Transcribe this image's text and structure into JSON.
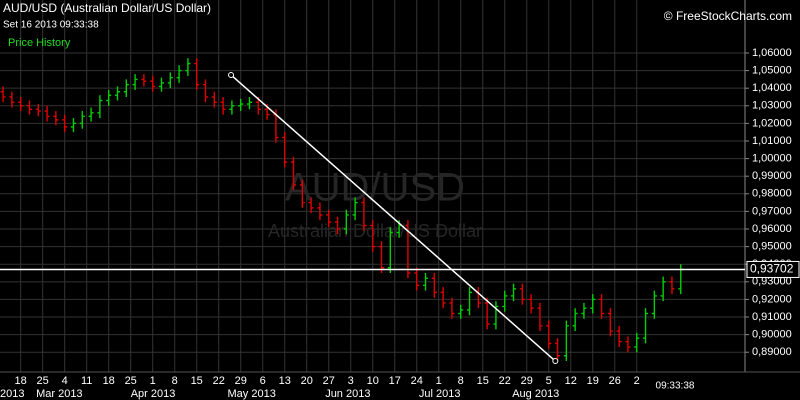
{
  "chart_data": {
    "type": "ohlc",
    "title": "AUD/USD (Australian Dollar/US Dollar)",
    "subtitle": "Set 16 2013 09:33:38",
    "panel_label": "Price History",
    "credit": "© FreeStockCharts.com",
    "watermark": "AUD/USD",
    "watermark_subtitle": "Australian Dollar/US Dollar",
    "time_label": "09:33:38",
    "up_color": "#00d000",
    "down_color": "#e00000",
    "grid": true,
    "x": [
      0,
      2,
      4,
      6,
      8,
      10,
      12,
      14,
      16,
      18,
      20,
      22,
      24,
      26,
      28,
      30,
      32,
      34,
      36,
      38,
      40,
      42,
      44,
      46,
      48,
      50,
      52,
      54,
      56,
      58,
      60,
      62,
      64,
      66,
      68,
      70,
      72,
      74,
      76,
      78,
      80,
      82,
      84,
      86,
      88,
      90,
      92,
      94,
      96,
      98,
      100,
      102,
      104,
      106,
      108,
      110,
      112,
      114,
      116,
      118,
      120,
      122,
      124,
      126,
      128,
      130,
      132,
      134,
      136,
      138,
      140,
      142,
      144,
      146,
      148,
      150,
      152,
      154
    ],
    "open": [
      1.038,
      1.035,
      1.032,
      1.03,
      1.028,
      1.027,
      1.024,
      1.022,
      1.018,
      1.02,
      1.024,
      1.026,
      1.033,
      1.036,
      1.038,
      1.042,
      1.045,
      1.044,
      1.041,
      1.043,
      1.046,
      1.05,
      1.054,
      1.042,
      1.035,
      1.032,
      1.028,
      1.03,
      1.031,
      1.032,
      1.028,
      1.025,
      1.012,
      0.998,
      0.985,
      0.975,
      0.972,
      0.968,
      0.964,
      0.96,
      0.968,
      0.975,
      0.962,
      0.95,
      0.938,
      0.958,
      0.962,
      0.935,
      0.928,
      0.932,
      0.924,
      0.918,
      0.912,
      0.914,
      0.924,
      0.918,
      0.906,
      0.916,
      0.922,
      0.926,
      0.92,
      0.915,
      0.905,
      0.895,
      0.888,
      0.905,
      0.912,
      0.915,
      0.92,
      0.912,
      0.902,
      0.896,
      0.893,
      0.898,
      0.912,
      0.922,
      0.93,
      0.926
    ],
    "high": [
      1.041,
      1.038,
      1.035,
      1.033,
      1.031,
      1.03,
      1.027,
      1.025,
      1.023,
      1.027,
      1.029,
      1.036,
      1.039,
      1.041,
      1.045,
      1.048,
      1.048,
      1.047,
      1.046,
      1.049,
      1.053,
      1.057,
      1.057,
      1.045,
      1.038,
      1.035,
      1.033,
      1.034,
      1.035,
      1.035,
      1.031,
      1.028,
      1.015,
      1.001,
      0.988,
      0.978,
      0.975,
      0.971,
      0.967,
      0.971,
      0.978,
      0.978,
      0.965,
      0.953,
      0.961,
      0.965,
      0.965,
      0.938,
      0.935,
      0.935,
      0.927,
      0.921,
      0.917,
      0.927,
      0.927,
      0.921,
      0.919,
      0.925,
      0.929,
      0.929,
      0.923,
      0.918,
      0.908,
      0.898,
      0.908,
      0.915,
      0.918,
      0.923,
      0.923,
      0.915,
      0.905,
      0.899,
      0.901,
      0.915,
      0.925,
      0.933,
      0.933,
      0.94
    ],
    "low": [
      1.032,
      1.029,
      1.027,
      1.025,
      1.024,
      1.021,
      1.019,
      1.015,
      1.015,
      1.017,
      1.021,
      1.023,
      1.03,
      1.033,
      1.035,
      1.039,
      1.041,
      1.038,
      1.038,
      1.04,
      1.043,
      1.047,
      1.039,
      1.032,
      1.029,
      1.025,
      1.025,
      1.027,
      1.028,
      1.025,
      1.022,
      1.009,
      0.995,
      0.982,
      0.972,
      0.969,
      0.965,
      0.961,
      0.957,
      0.957,
      0.965,
      0.959,
      0.947,
      0.935,
      0.935,
      0.955,
      0.932,
      0.925,
      0.925,
      0.921,
      0.915,
      0.909,
      0.909,
      0.911,
      0.915,
      0.903,
      0.903,
      0.913,
      0.919,
      0.917,
      0.912,
      0.902,
      0.892,
      0.885,
      0.885,
      0.902,
      0.909,
      0.912,
      0.909,
      0.899,
      0.893,
      0.89,
      0.89,
      0.895,
      0.909,
      0.919,
      0.923,
      0.923
    ],
    "close": [
      1.035,
      1.032,
      1.03,
      1.028,
      1.027,
      1.024,
      1.022,
      1.018,
      1.02,
      1.024,
      1.026,
      1.033,
      1.036,
      1.038,
      1.042,
      1.045,
      1.044,
      1.041,
      1.043,
      1.046,
      1.05,
      1.054,
      1.042,
      1.035,
      1.032,
      1.028,
      1.03,
      1.031,
      1.032,
      1.028,
      1.025,
      1.012,
      0.998,
      0.985,
      0.975,
      0.972,
      0.968,
      0.964,
      0.96,
      0.968,
      0.975,
      0.962,
      0.95,
      0.938,
      0.958,
      0.962,
      0.935,
      0.928,
      0.932,
      0.924,
      0.918,
      0.912,
      0.914,
      0.924,
      0.918,
      0.906,
      0.916,
      0.922,
      0.926,
      0.92,
      0.915,
      0.905,
      0.895,
      0.888,
      0.905,
      0.912,
      0.915,
      0.92,
      0.912,
      0.902,
      0.896,
      0.893,
      0.898,
      0.912,
      0.922,
      0.93,
      0.926,
      0.937
    ],
    "xlim": [
      -0.7,
      168.6
    ],
    "xticks": [
      {
        "value": 4,
        "label": "18"
      },
      {
        "value": 9,
        "label": "25"
      },
      {
        "value": 14,
        "label": "4"
      },
      {
        "value": 19,
        "label": "11"
      },
      {
        "value": 24,
        "label": "18"
      },
      {
        "value": 29,
        "label": "25"
      },
      {
        "value": 34,
        "label": "1"
      },
      {
        "value": 39,
        "label": "8"
      },
      {
        "value": 44,
        "label": "15"
      },
      {
        "value": 49,
        "label": "22"
      },
      {
        "value": 54,
        "label": "29"
      },
      {
        "value": 59,
        "label": "6"
      },
      {
        "value": 64,
        "label": "13"
      },
      {
        "value": 69,
        "label": "20"
      },
      {
        "value": 74,
        "label": "27"
      },
      {
        "value": 79,
        "label": "3"
      },
      {
        "value": 84,
        "label": "10"
      },
      {
        "value": 89,
        "label": "17"
      },
      {
        "value": 94,
        "label": "24"
      },
      {
        "value": 99,
        "label": "1"
      },
      {
        "value": 104,
        "label": "8"
      },
      {
        "value": 109,
        "label": "15"
      },
      {
        "value": 114,
        "label": "22"
      },
      {
        "value": 119,
        "label": "29"
      },
      {
        "value": 124,
        "label": "5"
      },
      {
        "value": 129,
        "label": "12"
      },
      {
        "value": 134,
        "label": "19"
      },
      {
        "value": 139,
        "label": "26"
      },
      {
        "value": 144,
        "label": "2"
      }
    ],
    "months": [
      {
        "value": -0.7,
        "label": "2013"
      },
      {
        "value": 7.5,
        "label": "Mar 2013"
      },
      {
        "value": 29,
        "label": "Apr 2013"
      },
      {
        "value": 51,
        "label": "May 2013"
      },
      {
        "value": 73.2,
        "label": "Jun 2013"
      },
      {
        "value": 94.5,
        "label": "Jul 2013"
      },
      {
        "value": 115.7,
        "label": "Aug 2013"
      }
    ],
    "ylim": [
      0.8799,
      1.0901
    ],
    "yticks": [
      {
        "value": 0.89,
        "label": "0,89000"
      },
      {
        "value": 0.9,
        "label": "0,90000"
      },
      {
        "value": 0.91,
        "label": "0,91000"
      },
      {
        "value": 0.92,
        "label": "0,92000"
      },
      {
        "value": 0.93,
        "label": "0,93000"
      },
      {
        "value": 0.94,
        "label": "0,94000"
      },
      {
        "value": 0.95,
        "label": "0,95000"
      },
      {
        "value": 0.96,
        "label": "0,96000"
      },
      {
        "value": 0.97,
        "label": "0,97000"
      },
      {
        "value": 0.98,
        "label": "0,98000"
      },
      {
        "value": 0.99,
        "label": "0,99000"
      },
      {
        "value": 1.0,
        "label": "1,00000"
      },
      {
        "value": 1.01,
        "label": "1,01000"
      },
      {
        "value": 1.02,
        "label": "1,02000"
      },
      {
        "value": 1.03,
        "label": "1,03000"
      },
      {
        "value": 1.04,
        "label": "1,04000"
      },
      {
        "value": 1.05,
        "label": "1,05000"
      },
      {
        "value": 1.06,
        "label": "1,06000"
      }
    ],
    "hline": {
      "value": 0.93702,
      "label": "0,93702"
    },
    "trendline": {
      "x": [
        51.8,
        125.5
      ],
      "y": [
        1.0475,
        0.885
      ]
    }
  }
}
